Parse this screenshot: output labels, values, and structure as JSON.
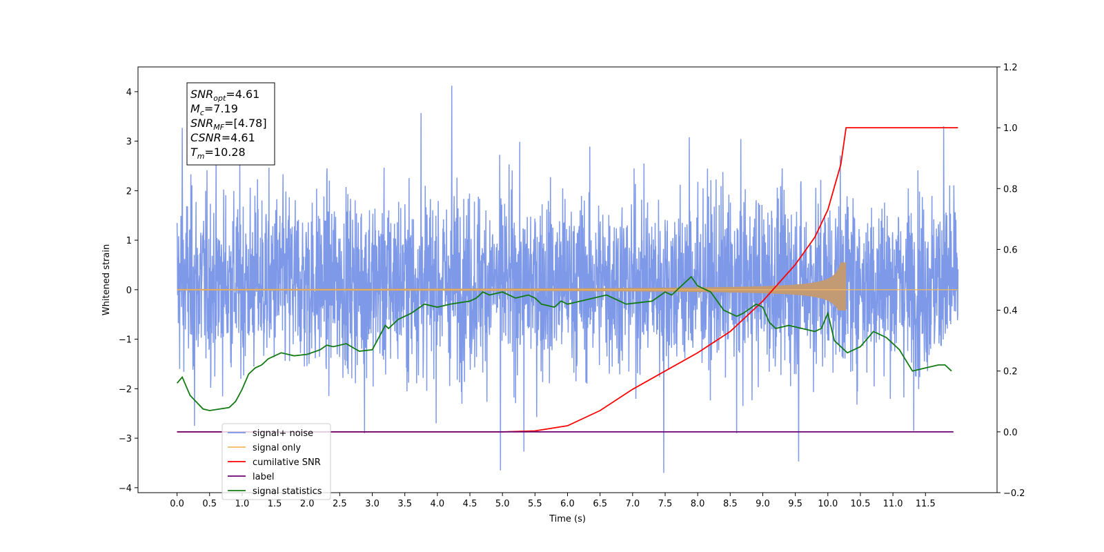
{
  "chart_data": {
    "type": "line",
    "xlabel": "Time (s)",
    "ylabel": "Whitened strain",
    "xlim": [
      -0.6,
      12.6
    ],
    "ylim": [
      -4.1,
      4.5
    ],
    "ylim_right": [
      -0.2,
      1.2
    ],
    "x_ticks": [
      0.0,
      0.5,
      1.0,
      1.5,
      2.0,
      2.5,
      3.0,
      3.5,
      4.0,
      4.5,
      5.0,
      5.5,
      6.0,
      6.5,
      7.0,
      7.5,
      8.0,
      8.5,
      9.0,
      9.5,
      10.0,
      10.5,
      11.0,
      11.5
    ],
    "x_tick_labels": [
      "0.0",
      "0.5",
      "1.0",
      "1.5",
      "2.0",
      "2.5",
      "3.0",
      "3.5",
      "4.0",
      "4.5",
      "5.0",
      "5.5",
      "6.0",
      "6.5",
      "7.0",
      "7.5",
      "8.0",
      "8.5",
      "9.0",
      "9.5",
      "10.0",
      "10.5",
      "11.0",
      "11.5"
    ],
    "y_ticks": [
      -4,
      -3,
      -2,
      -1,
      0,
      1,
      2,
      3,
      4
    ],
    "y_tick_labels": [
      "−4",
      "−3",
      "−2",
      "−1",
      "0",
      "1",
      "2",
      "3",
      "4"
    ],
    "y_right_ticks": [
      -0.2,
      0.0,
      0.2,
      0.4,
      0.6,
      0.8,
      1.0,
      1.2
    ],
    "y_right_tick_labels": [
      "−0.2",
      "0.0",
      "0.2",
      "0.4",
      "0.6",
      "0.8",
      "1.0",
      "1.2"
    ],
    "grid": false,
    "legend_position": "lower-left",
    "annotations": {
      "lines": [
        {
          "base": "SNR",
          "sub": "opt",
          "rest": "=4.61"
        },
        {
          "base": "M",
          "sub": "c",
          "rest": "=7.19"
        },
        {
          "base": "SNR",
          "sub": "MF",
          "rest": "=[4.78]"
        },
        {
          "base": "CSNR",
          "sub": "",
          "rest": "=4.61"
        },
        {
          "base": "T",
          "sub": "m",
          "rest": "=10.28"
        }
      ]
    },
    "series": [
      {
        "name": "signal+ noise",
        "color": "#7893e8",
        "axis": "left",
        "kind": "noise",
        "x_range": [
          0.0,
          12.0
        ],
        "y_typical_band": [
          -1.6,
          2.0
        ],
        "y_min": -3.7,
        "y_max": 4.12,
        "spikes": [
          [
            0.08,
            3.27
          ],
          [
            4.22,
            4.12
          ],
          [
            3.75,
            3.57
          ],
          [
            7.87,
            3.08
          ],
          [
            11.78,
            3.3
          ],
          [
            0.27,
            -2.75
          ],
          [
            4.97,
            -3.65
          ],
          [
            5.33,
            -3.27
          ],
          [
            7.48,
            -3.7
          ],
          [
            9.55,
            -3.47
          ],
          [
            8.6,
            -2.9
          ],
          [
            2.88,
            -2.9
          ],
          [
            11.32,
            -2.85
          ]
        ]
      },
      {
        "name": "signal only",
        "color": "#f3b85e",
        "axis": "left",
        "kind": "chirp",
        "x_range": [
          0.0,
          12.0
        ],
        "merger_time": 10.28,
        "peak_amplitude": [
          0.55,
          -0.42
        ]
      },
      {
        "name": "cumilative SNR",
        "color": "#ff0000",
        "axis": "right",
        "x": [
          0.0,
          5.0,
          5.5,
          6.0,
          6.5,
          7.0,
          7.5,
          8.0,
          8.5,
          9.0,
          9.5,
          9.8,
          10.0,
          10.2,
          10.28,
          12.0
        ],
        "values": [
          0.0,
          0.0,
          0.003,
          0.02,
          0.07,
          0.14,
          0.2,
          0.26,
          0.33,
          0.43,
          0.55,
          0.64,
          0.73,
          0.88,
          1.0,
          1.0
        ]
      },
      {
        "name": "label",
        "color": "#6a0070",
        "axis": "right",
        "x": [
          0.0,
          11.93
        ],
        "values": [
          0.0,
          0.0
        ]
      },
      {
        "name": "signal statistics",
        "color": "#127a12",
        "axis": "right",
        "x": [
          0.0,
          0.08,
          0.2,
          0.4,
          0.5,
          0.8,
          0.9,
          1.0,
          1.1,
          1.2,
          1.3,
          1.4,
          1.5,
          1.6,
          1.8,
          2.0,
          2.2,
          2.3,
          2.4,
          2.6,
          2.8,
          3.0,
          3.2,
          3.25,
          3.4,
          3.6,
          3.8,
          4.0,
          4.2,
          4.5,
          4.6,
          4.7,
          4.8,
          5.0,
          5.2,
          5.4,
          5.5,
          5.6,
          5.8,
          5.9,
          6.0,
          6.2,
          6.4,
          6.6,
          6.8,
          6.9,
          7.1,
          7.3,
          7.5,
          7.6,
          7.8,
          7.9,
          8.0,
          8.2,
          8.4,
          8.6,
          8.7,
          8.9,
          9.0,
          9.1,
          9.2,
          9.4,
          9.6,
          9.8,
          9.9,
          10.0,
          10.1,
          10.3,
          10.5,
          10.7,
          10.9,
          11.1,
          11.3,
          11.5,
          11.7,
          11.8,
          11.9
        ],
        "values": [
          0.16,
          0.18,
          0.12,
          0.075,
          0.07,
          0.08,
          0.1,
          0.14,
          0.19,
          0.21,
          0.22,
          0.24,
          0.25,
          0.26,
          0.25,
          0.255,
          0.27,
          0.285,
          0.28,
          0.29,
          0.265,
          0.27,
          0.35,
          0.34,
          0.37,
          0.39,
          0.42,
          0.41,
          0.42,
          0.43,
          0.44,
          0.46,
          0.45,
          0.46,
          0.44,
          0.45,
          0.44,
          0.42,
          0.41,
          0.43,
          0.42,
          0.43,
          0.44,
          0.45,
          0.43,
          0.42,
          0.425,
          0.43,
          0.46,
          0.45,
          0.49,
          0.51,
          0.48,
          0.46,
          0.4,
          0.38,
          0.39,
          0.42,
          0.41,
          0.36,
          0.34,
          0.35,
          0.34,
          0.33,
          0.34,
          0.39,
          0.3,
          0.26,
          0.28,
          0.33,
          0.31,
          0.27,
          0.2,
          0.21,
          0.22,
          0.22,
          0.2
        ]
      }
    ]
  }
}
